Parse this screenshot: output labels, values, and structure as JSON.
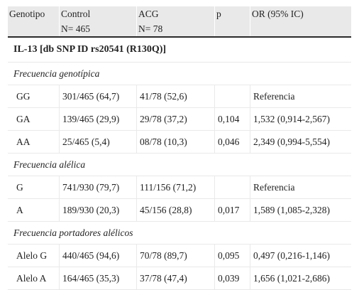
{
  "header": {
    "col1": "Genotipo",
    "col2_line1": "Control",
    "col2_line2": "N= 465",
    "col3_line1": "ACG",
    "col3_line2": "N= 78",
    "col4": "p",
    "col5": "OR (95% IC)"
  },
  "section_title": "IL-13 [db SNP ID rs20541 (R130Q)]",
  "groups": [
    {
      "title": "Frecuencia genotípica",
      "rows": [
        {
          "label": "GG",
          "control": "301/465 (64,7)",
          "acg": "41/78 (52,6)",
          "p": "",
          "or": "Referencia"
        },
        {
          "label": "GA",
          "control": "139/465 (29,9)",
          "acg": "29/78 (37,2)",
          "p": "0,104",
          "or": "1,532 (0,914-2,567)"
        },
        {
          "label": "AA",
          "control": "25/465 (5,4)",
          "acg": "08/78 (10,3)",
          "p": "0,046",
          "or": "2,349 (0,994-5,554)"
        }
      ]
    },
    {
      "title": "Frecuencia alélica",
      "rows": [
        {
          "label": "G",
          "control": "741/930 (79,7)",
          "acg": "111/156 (71,2)",
          "p": "",
          "or": "Referencia"
        },
        {
          "label": "A",
          "control": "189/930 (20,3)",
          "acg": "45/156 (28,8)",
          "p": "0,017",
          "or": "1,589 (1,085-2,328)"
        }
      ]
    },
    {
      "title": "Frecuencia portadores alélicos",
      "rows": [
        {
          "label": "Alelo G",
          "control": "440/465 (94,6)",
          "acg": "70/78 (89,7)",
          "p": "0,095",
          "or": "0,497 (0,216-1,146)"
        },
        {
          "label": "Alelo A",
          "control": "164/465 (35,3)",
          "acg": "37/78 (47,4)",
          "p": "0,039",
          "or": "1,656 (1,021-2,686)"
        }
      ]
    }
  ]
}
